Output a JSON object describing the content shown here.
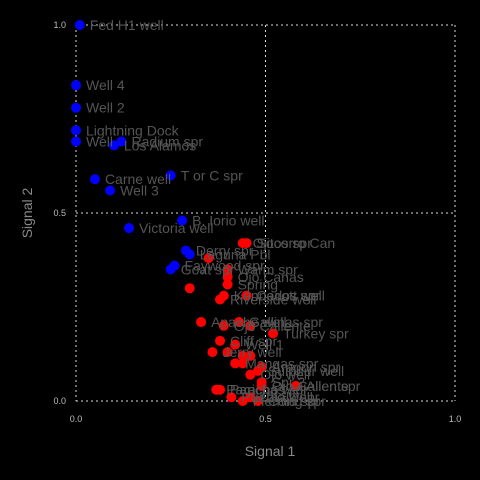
{
  "chart_data": {
    "type": "scatter",
    "title": "",
    "xlabel": "Signal 1",
    "ylabel": "Signal 2",
    "xlim": [
      0,
      1
    ],
    "ylim": [
      0,
      1
    ],
    "xticks": [
      "0.0",
      "0.5",
      "1.0"
    ],
    "yticks": [
      "0.0",
      "0.5",
      "1.0"
    ],
    "grid": true,
    "colors": {
      "blue": "#0000ff",
      "red": "#ff0000",
      "label": "#555555"
    },
    "points": [
      {
        "x": 0.01,
        "y": 1.0,
        "color": "blue",
        "label": "Fed H1 well"
      },
      {
        "x": 0.0,
        "y": 0.84,
        "color": "blue",
        "label": "Well 4"
      },
      {
        "x": 0.0,
        "y": 0.78,
        "color": "blue",
        "label": "Well 2"
      },
      {
        "x": 0.0,
        "y": 0.72,
        "color": "blue",
        "label": "Lightning Dock"
      },
      {
        "x": 0.0,
        "y": 0.69,
        "color": "blue",
        "label": "Well"
      },
      {
        "x": 0.1,
        "y": 0.68,
        "color": "blue",
        "label": "Los Alamos"
      },
      {
        "x": 0.12,
        "y": 0.69,
        "color": "blue",
        "label": "Radium spr"
      },
      {
        "x": 0.05,
        "y": 0.59,
        "color": "blue",
        "label": "Carne well"
      },
      {
        "x": 0.09,
        "y": 0.56,
        "color": "blue",
        "label": "Well 3"
      },
      {
        "x": 0.25,
        "y": 0.6,
        "color": "blue",
        "label": "T or C spr"
      },
      {
        "x": 0.28,
        "y": 0.48,
        "color": "blue",
        "label": "B. Iorio well"
      },
      {
        "x": 0.14,
        "y": 0.46,
        "color": "blue",
        "label": "Victoria well"
      },
      {
        "x": 0.29,
        "y": 0.4,
        "color": "blue",
        "label": "Derry spr"
      },
      {
        "x": 0.3,
        "y": 0.39,
        "color": "blue",
        "label": "Laguna Pbl"
      },
      {
        "x": 0.25,
        "y": 0.35,
        "color": "blue",
        "label": "Goat spr"
      },
      {
        "x": 0.26,
        "y": 0.36,
        "color": "blue",
        "label": "Faywood spr"
      },
      {
        "x": 0.45,
        "y": 0.42,
        "color": "red",
        "label": "Socorro Can"
      },
      {
        "x": 0.44,
        "y": 0.42,
        "color": "red",
        "label": "Ojitos spr"
      },
      {
        "x": 0.35,
        "y": 0.38,
        "color": "red",
        "label": ""
      },
      {
        "x": 0.4,
        "y": 0.35,
        "color": "red",
        "label": "Warm spr"
      },
      {
        "x": 0.4,
        "y": 0.33,
        "color": "red",
        "label": "Ojo Canas"
      },
      {
        "x": 0.4,
        "y": 0.31,
        "color": "red",
        "label": "Spring"
      },
      {
        "x": 0.3,
        "y": 0.3,
        "color": "red",
        "label": ""
      },
      {
        "x": 0.38,
        "y": 0.27,
        "color": "red",
        "label": "Riverside well"
      },
      {
        "x": 0.39,
        "y": 0.28,
        "color": "red",
        "label": "Kennecott well"
      },
      {
        "x": 0.45,
        "y": 0.28,
        "color": "red",
        "label": "Carlos spr"
      },
      {
        "x": 0.33,
        "y": 0.21,
        "color": "red",
        "label": "Apache well"
      },
      {
        "x": 0.39,
        "y": 0.2,
        "color": "red",
        "label": "Ojo Caliente"
      },
      {
        "x": 0.43,
        "y": 0.21,
        "color": "red",
        "label": "Gallinas spr"
      },
      {
        "x": 0.46,
        "y": 0.2,
        "color": "red",
        "label": ""
      },
      {
        "x": 0.52,
        "y": 0.18,
        "color": "red",
        "label": "Turkey spr"
      },
      {
        "x": 0.38,
        "y": 0.16,
        "color": "red",
        "label": "Cliff spr"
      },
      {
        "x": 0.42,
        "y": 0.15,
        "color": "red",
        "label": "Well 1"
      },
      {
        "x": 0.36,
        "y": 0.13,
        "color": "red",
        "label": "Jerry well"
      },
      {
        "x": 0.4,
        "y": 0.13,
        "color": "red",
        "label": ""
      },
      {
        "x": 0.44,
        "y": 0.12,
        "color": "red",
        "label": ""
      },
      {
        "x": 0.46,
        "y": 0.12,
        "color": "red",
        "label": ""
      },
      {
        "x": 0.42,
        "y": 0.1,
        "color": "red",
        "label": "Mangas spr"
      },
      {
        "x": 0.44,
        "y": 0.1,
        "color": "red",
        "label": ""
      },
      {
        "x": 0.49,
        "y": 0.09,
        "color": "red",
        "label": "Aragon spr"
      },
      {
        "x": 0.48,
        "y": 0.08,
        "color": "red",
        "label": "Sulphur well"
      },
      {
        "x": 0.46,
        "y": 0.07,
        "color": "red",
        "label": "Ojo well"
      },
      {
        "x": 0.49,
        "y": 0.05,
        "color": "red",
        "label": "Spr 2"
      },
      {
        "x": 0.49,
        "y": 0.04,
        "color": "red",
        "label": "Ojo Caliente"
      },
      {
        "x": 0.58,
        "y": 0.04,
        "color": "red",
        "label": "Allen spr"
      },
      {
        "x": 0.37,
        "y": 0.03,
        "color": "red",
        "label": "Paracho well"
      },
      {
        "x": 0.38,
        "y": 0.03,
        "color": "red",
        "label": "Parichas spr"
      },
      {
        "x": 0.41,
        "y": 0.01,
        "color": "red",
        "label": "Pueblo well"
      },
      {
        "x": 0.44,
        "y": 0.0,
        "color": "red",
        "label": "Fleming spr"
      },
      {
        "x": 0.46,
        "y": 0.01,
        "color": "red",
        "label": "Chalk spr"
      },
      {
        "x": 0.48,
        "y": 0.0,
        "color": "red",
        "label": "Cold spr"
      }
    ]
  }
}
